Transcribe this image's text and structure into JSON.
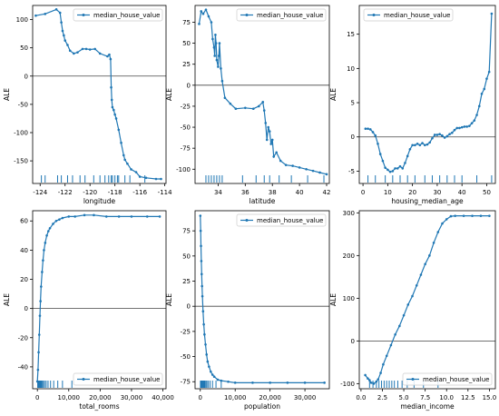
{
  "figure": {
    "series_color": "#1f77b4"
  },
  "chart_data": [
    {
      "type": "line",
      "xlabel": "longitude",
      "ylabel": "ALE",
      "legend": {
        "label": "median_house_value",
        "placement": "top-right"
      },
      "xlim": [
        -124.6,
        -113.9
      ],
      "ylim": [
        -190,
        125
      ],
      "xticks": [
        -124,
        -122,
        -120,
        -118,
        -116,
        -114
      ],
      "yticks": [
        -150,
        -100,
        -50,
        0,
        50,
        100
      ],
      "x": [
        -124.35,
        -123.6,
        -122.7,
        -122.4,
        -122.3,
        -122.2,
        -122.1,
        -122.0,
        -121.8,
        -121.6,
        -121.3,
        -121.0,
        -120.6,
        -120.3,
        -120.0,
        -119.6,
        -119.2,
        -118.6,
        -118.45,
        -118.35,
        -118.3,
        -118.25,
        -118.2,
        -118.1,
        -118.0,
        -117.9,
        -117.7,
        -117.5,
        -117.3,
        -117.2,
        -117.0,
        -116.7,
        -116.3,
        -116.0,
        -115.5,
        -114.7,
        -114.3
      ],
      "y": [
        107,
        110,
        118,
        112,
        95,
        80,
        72,
        63,
        55,
        45,
        40,
        42,
        48,
        48,
        47,
        48,
        40,
        35,
        38,
        30,
        -20,
        -42,
        -55,
        -60,
        -68,
        -75,
        -95,
        -118,
        -140,
        -148,
        -155,
        -165,
        -170,
        -178,
        -180,
        -182,
        -182
      ],
      "rug": [
        -123.9,
        -123.6,
        -122.6,
        -122.3,
        -121.8,
        -121.4,
        -120.8,
        -120.4,
        -119.7,
        -119.2,
        -118.8,
        -118.5,
        -118.3,
        -118.2,
        -118.0,
        -117.8,
        -117.7,
        -117.2,
        -116.8,
        -115.6
      ]
    },
    {
      "type": "line",
      "xlabel": "latitude",
      "ylabel": "ALE",
      "legend": {
        "label": "median_house_value",
        "placement": "top-right"
      },
      "xlim": [
        32.3,
        42.2
      ],
      "ylim": [
        -117,
        95
      ],
      "xticks": [
        34,
        36,
        38,
        40,
        42
      ],
      "yticks": [
        -100,
        -75,
        -50,
        -25,
        0,
        25,
        50,
        75
      ],
      "x": [
        32.6,
        32.75,
        32.9,
        33.1,
        33.3,
        33.5,
        33.6,
        33.7,
        33.75,
        33.8,
        33.85,
        33.9,
        34.0,
        34.05,
        34.1,
        34.2,
        34.3,
        34.5,
        34.9,
        35.3,
        36.0,
        36.6,
        37.0,
        37.3,
        37.4,
        37.5,
        37.6,
        37.7,
        37.8,
        37.9,
        38.0,
        38.1,
        38.3,
        38.6,
        39.0,
        39.5,
        40.0,
        40.5,
        41.0,
        41.5,
        42.0
      ],
      "y": [
        73,
        88,
        85,
        90,
        82,
        75,
        55,
        45,
        35,
        60,
        50,
        30,
        22,
        35,
        50,
        20,
        5,
        -15,
        -22,
        -28,
        -27,
        -28,
        -25,
        -20,
        -30,
        -45,
        -65,
        -50,
        -55,
        -70,
        -65,
        -85,
        -80,
        -90,
        -95,
        -96,
        -98,
        -100,
        -102,
        -104,
        -106
      ],
      "rug": [
        33.1,
        33.3,
        33.5,
        33.7,
        33.9,
        34.1,
        34.3,
        35.8,
        36.8,
        37.4,
        37.8,
        38.5,
        39.4,
        40.6,
        41.8
      ]
    },
    {
      "type": "line",
      "xlabel": "housing_median_age",
      "ylabel": "ALE",
      "legend": {
        "label": "median_house_value",
        "placement": "top-left"
      },
      "xlim": [
        -1.5,
        53.5
      ],
      "ylim": [
        -6.8,
        19.2
      ],
      "xticks": [
        0,
        10,
        20,
        30,
        40,
        50
      ],
      "yticks": [
        -5,
        0,
        5,
        10,
        15
      ],
      "x": [
        1,
        2,
        3,
        4,
        5,
        6,
        7,
        8,
        9,
        10,
        11,
        12,
        13,
        14,
        15,
        16,
        17,
        18,
        19,
        20,
        21,
        22,
        23,
        24,
        25,
        26,
        27,
        28,
        29,
        30,
        31,
        32,
        33,
        34,
        35,
        36,
        37,
        38,
        39,
        40,
        41,
        42,
        43,
        44,
        45,
        46,
        47,
        48,
        49,
        50,
        51,
        52
      ],
      "y": [
        1.2,
        1.2,
        1.1,
        0.7,
        0.2,
        -1.0,
        -2.5,
        -3.5,
        -4.5,
        -4.8,
        -5.1,
        -5.0,
        -4.6,
        -4.6,
        -4.3,
        -4.6,
        -3.8,
        -2.8,
        -1.8,
        -1.2,
        -1.2,
        -1.0,
        -1.2,
        -0.9,
        -1.2,
        -1.1,
        -0.8,
        -0.2,
        0.3,
        0.3,
        0.4,
        0.2,
        -0.1,
        0.1,
        0.4,
        0.6,
        1.0,
        1.3,
        1.3,
        1.4,
        1.5,
        1.5,
        1.6,
        2.0,
        2.4,
        3.2,
        4.5,
        6.3,
        7.0,
        8.5,
        9.5,
        18.0
      ],
      "rug": [
        2,
        5,
        9,
        12,
        15,
        18,
        21,
        25,
        28,
        31,
        34,
        37,
        40,
        46,
        52
      ]
    },
    {
      "type": "line",
      "xlabel": "total_rooms",
      "ylabel": "ALE",
      "legend": {
        "label": "median_house_value",
        "placement": "bottom-right"
      },
      "xlim": [
        -1500,
        41000
      ],
      "ylim": [
        -55,
        67
      ],
      "xticks": [
        0,
        10000,
        20000,
        30000,
        40000
      ],
      "xticklabels": [
        "0",
        "10,000",
        "20,000",
        "30,000",
        "40,000"
      ],
      "yticks": [
        -40,
        -20,
        0,
        20,
        40,
        60
      ],
      "x": [
        0,
        200,
        400,
        600,
        800,
        1000,
        1200,
        1500,
        1800,
        2100,
        2500,
        3000,
        3500,
        4000,
        5000,
        6000,
        7000,
        8000,
        10000,
        12000,
        15000,
        18000,
        22000,
        26000,
        30000,
        35000,
        39000
      ],
      "y": [
        -50,
        -42,
        -30,
        -18,
        -5,
        5,
        15,
        25,
        33,
        40,
        45,
        50,
        53,
        55,
        58,
        60,
        61,
        62,
        63,
        63,
        64,
        64,
        63,
        63,
        63,
        63,
        63
      ],
      "rug": [
        100,
        300,
        500,
        700,
        900,
        1100,
        1300,
        1600,
        1900,
        2300,
        2800,
        3400,
        4200,
        5200,
        6500,
        8000,
        11000
      ]
    },
    {
      "type": "line",
      "xlabel": "population",
      "ylabel": "ALE",
      "legend": {
        "label": "median_house_value",
        "placement": "top-right"
      },
      "xlim": [
        -1500,
        37000
      ],
      "ylim": [
        -82,
        95
      ],
      "xticks": [
        0,
        10000,
        20000,
        30000
      ],
      "xticklabels": [
        "0",
        "10,000",
        "20,000",
        "30,000"
      ],
      "yticks": [
        -75,
        -50,
        -25,
        0,
        25,
        50,
        75
      ],
      "x": [
        10,
        100,
        200,
        300,
        400,
        500,
        600,
        800,
        1000,
        1200,
        1500,
        1800,
        2100,
        2500,
        3000,
        3500,
        4000,
        5000,
        6000,
        8000,
        10000,
        15000,
        20000,
        25000,
        30000,
        35600
      ],
      "y": [
        90,
        75,
        60,
        45,
        32,
        20,
        10,
        -5,
        -18,
        -28,
        -38,
        -48,
        -55,
        -60,
        -65,
        -68,
        -70,
        -73,
        -74,
        -75,
        -76,
        -76,
        -76,
        -76,
        -76,
        -76
      ],
      "rug": [
        50,
        150,
        250,
        350,
        450,
        550,
        700,
        900,
        1100,
        1300,
        1600,
        1900,
        2300,
        2800,
        3500,
        4500,
        6000
      ]
    },
    {
      "type": "line",
      "xlabel": "median_income",
      "ylabel": "ALE",
      "legend": {
        "label": "median_house_value",
        "placement": "bottom-right"
      },
      "xlim": [
        -0.2,
        15.7
      ],
      "ylim": [
        -112,
        305
      ],
      "xticks": [
        0.0,
        2.5,
        5.0,
        7.5,
        10.0,
        12.5,
        15.0
      ],
      "xticklabels": [
        "0.0",
        "2.5",
        "5.0",
        "7.5",
        "10.0",
        "12.5",
        "15.0"
      ],
      "yticks": [
        -100,
        0,
        100,
        200,
        300
      ],
      "x": [
        0.5,
        0.8,
        1.0,
        1.2,
        1.5,
        1.8,
        2.0,
        2.3,
        2.6,
        3.0,
        3.5,
        4.0,
        4.5,
        5.0,
        5.5,
        6.0,
        6.5,
        7.0,
        7.5,
        8.0,
        8.5,
        9.0,
        9.5,
        10.0,
        10.5,
        11.0,
        12.0,
        13.0,
        14.0,
        15.0
      ],
      "y": [
        -80,
        -88,
        -92,
        -98,
        -100,
        -95,
        -90,
        -75,
        -55,
        -35,
        -10,
        15,
        35,
        60,
        85,
        105,
        130,
        155,
        180,
        200,
        230,
        255,
        275,
        285,
        292,
        293,
        293,
        293,
        293,
        293
      ],
      "rug": [
        1.0,
        1.4,
        1.8,
        2.1,
        2.4,
        2.7,
        3.0,
        3.3,
        3.6,
        3.9,
        4.3,
        4.8,
        5.4,
        6.2,
        7.3,
        9.0
      ]
    }
  ]
}
